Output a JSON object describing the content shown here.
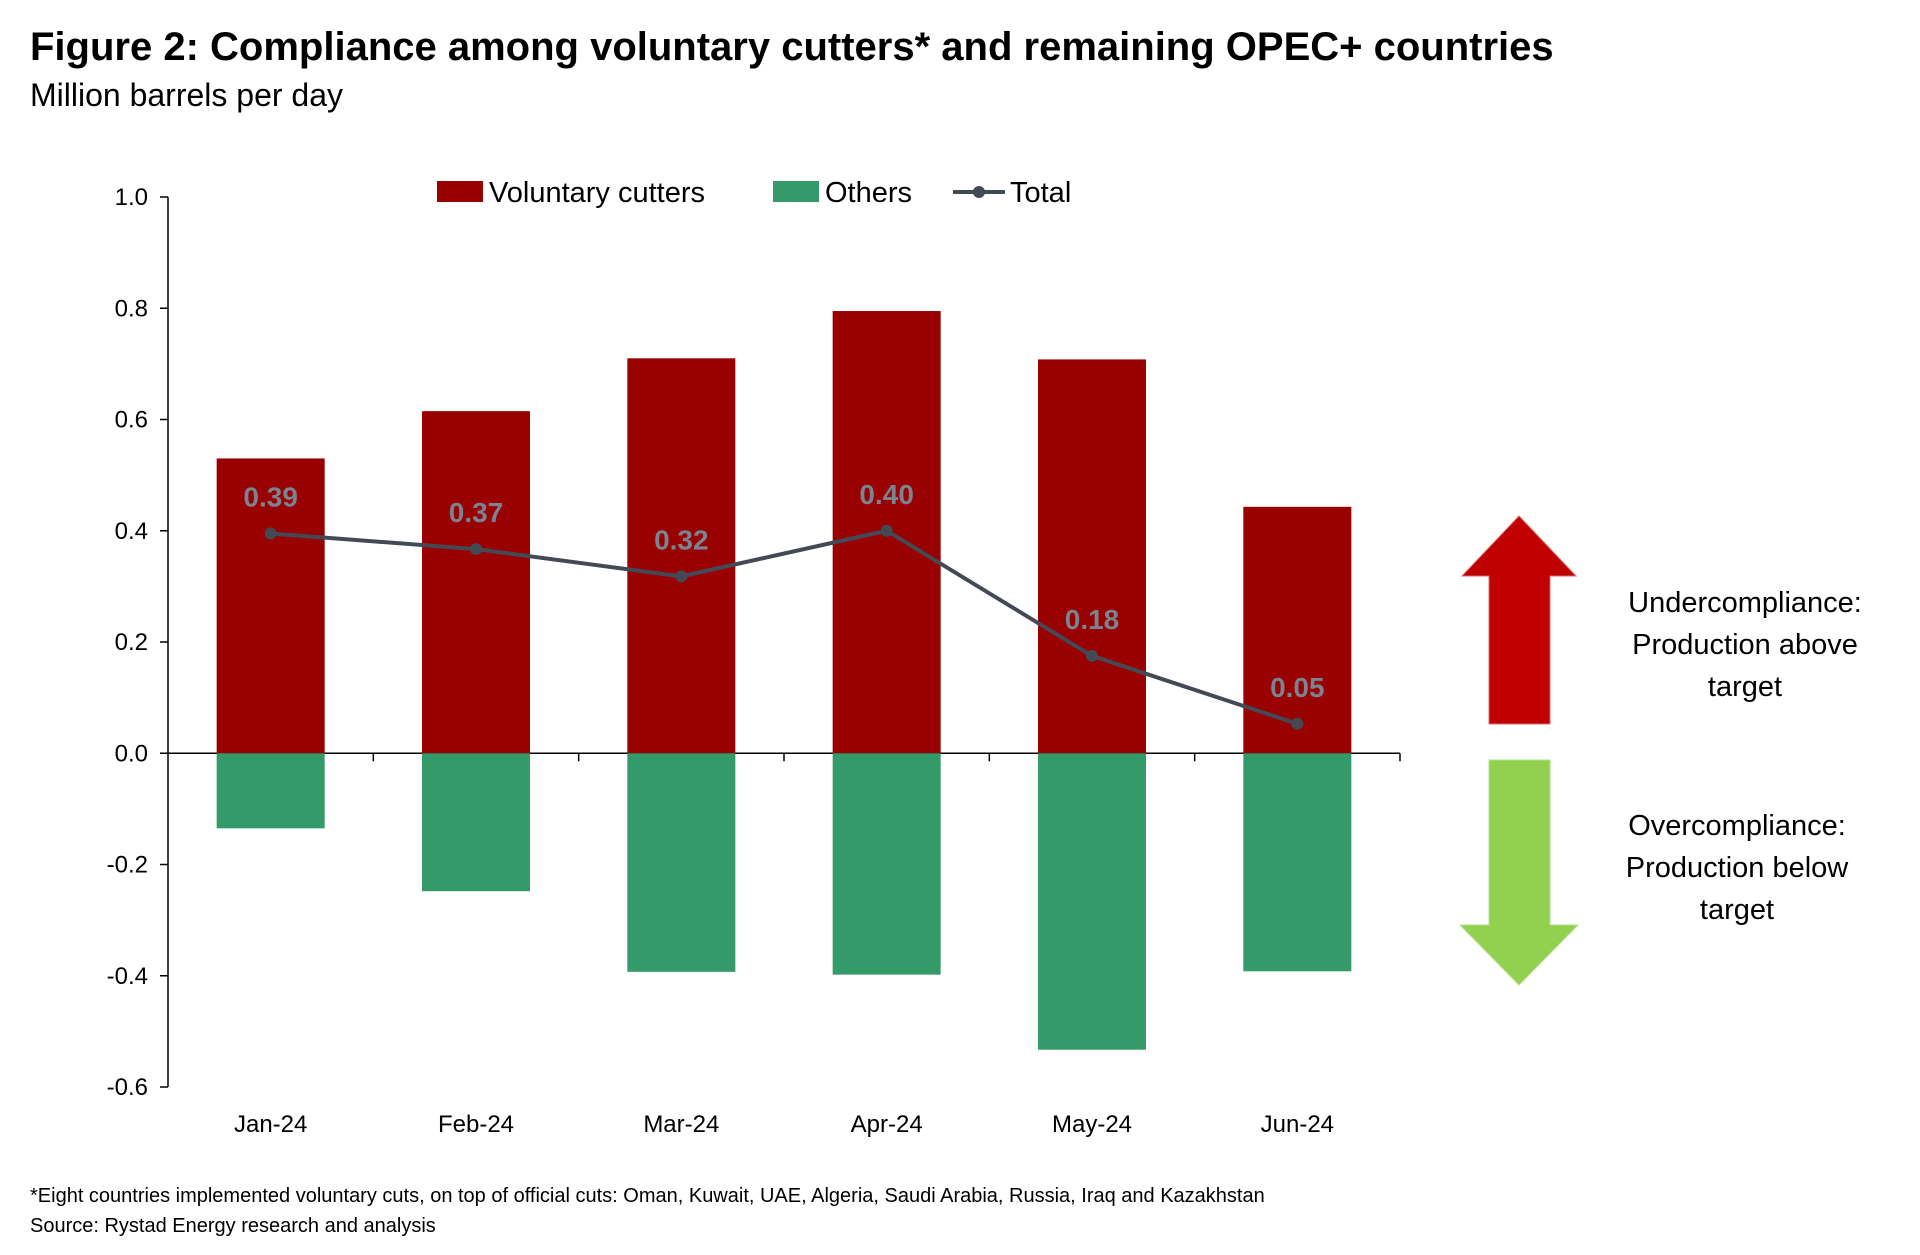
{
  "chart_data": {
    "type": "bar",
    "title": "Figure 2: Compliance among voluntary cutters* and remaining OPEC+ countries",
    "subtitle": "Million barrels per day",
    "categories": [
      "Jan-24",
      "Feb-24",
      "Mar-24",
      "Apr-24",
      "May-24",
      "Jun-24"
    ],
    "series": [
      {
        "name": "Voluntary cutters",
        "type": "bar",
        "color": "#990000",
        "values": [
          0.53,
          0.615,
          0.71,
          0.795,
          0.708,
          0.443
        ]
      },
      {
        "name": "Others",
        "type": "bar",
        "color": "#359A69",
        "values": [
          -0.135,
          -0.248,
          -0.393,
          -0.398,
          -0.533,
          -0.392
        ]
      },
      {
        "name": "Total",
        "type": "line",
        "color": "#444A55",
        "values": [
          0.395,
          0.367,
          0.318,
          0.4,
          0.175,
          0.053
        ],
        "labels": [
          "0.39",
          "0.37",
          "0.32",
          "0.40",
          "0.18",
          "0.05"
        ],
        "label_color": "#7A8390"
      }
    ],
    "stacked": true,
    "ylim": [
      -0.6,
      1.0
    ],
    "yticks": [
      "1.0",
      "0.8",
      "0.6",
      "0.4",
      "0.2",
      "0.0",
      "-0.2",
      "-0.4",
      "-0.6"
    ],
    "ytick_values": [
      1.0,
      0.8,
      0.6,
      0.4,
      0.2,
      0.0,
      -0.2,
      -0.4,
      -0.6
    ],
    "grid": false,
    "legend": "top",
    "annotations": {
      "up": {
        "lines": [
          "Undercompliance:",
          "Production above",
          "target"
        ],
        "color": "#C00000"
      },
      "down": {
        "lines": [
          "Overcompliance:",
          "Production below",
          "target"
        ],
        "color": "#92D050"
      }
    },
    "footnote": "*Eight countries implemented voluntary cuts, on top of official cuts: Oman, Kuwait, UAE, Algeria, Saudi Arabia, Russia, Iraq and Kazakhstan",
    "source": "Source: Rystad Energy research and analysis"
  }
}
